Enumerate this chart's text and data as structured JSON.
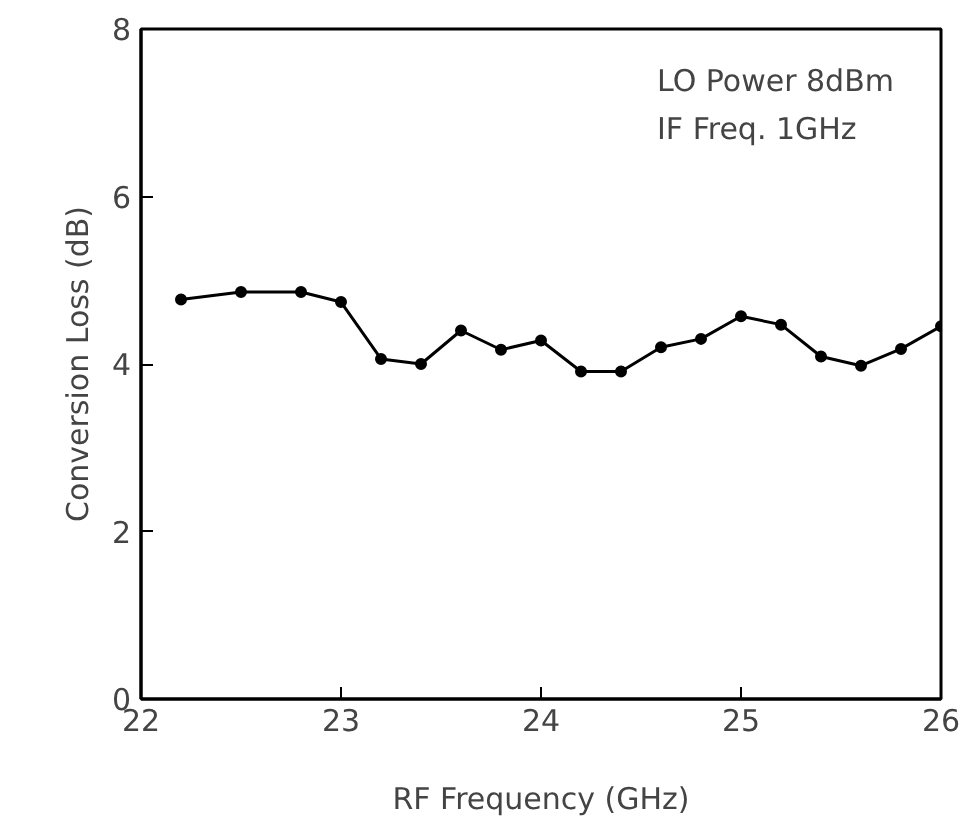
{
  "chart_data": {
    "type": "line",
    "xlabel": "RF Frequency (GHz)",
    "ylabel": "Conversion Loss (dB)",
    "x": [
      22.2,
      22.5,
      22.8,
      23.0,
      23.2,
      23.4,
      23.6,
      23.8,
      24.0,
      24.2,
      24.4,
      24.6,
      24.8,
      25.0,
      25.2,
      25.4,
      25.6,
      25.8,
      26.0
    ],
    "series": [
      {
        "color": "#000000",
        "values": [
          4.77,
          4.86,
          4.86,
          4.74,
          4.06,
          4.0,
          4.4,
          4.17,
          4.28,
          3.91,
          3.91,
          4.2,
          4.3,
          4.57,
          4.47,
          4.09,
          3.98,
          4.18,
          4.45
        ]
      }
    ],
    "xlim": [
      22,
      26
    ],
    "xticks": [
      22,
      23,
      24,
      25,
      26
    ],
    "ylim": [
      0,
      8
    ],
    "yticks": [
      0,
      2,
      4,
      6,
      8
    ],
    "annotations": [
      "LO Power  8dBm",
      "IF Freq.     1GHz"
    ],
    "marker": "circle",
    "line_style": "solid",
    "grid": false
  }
}
